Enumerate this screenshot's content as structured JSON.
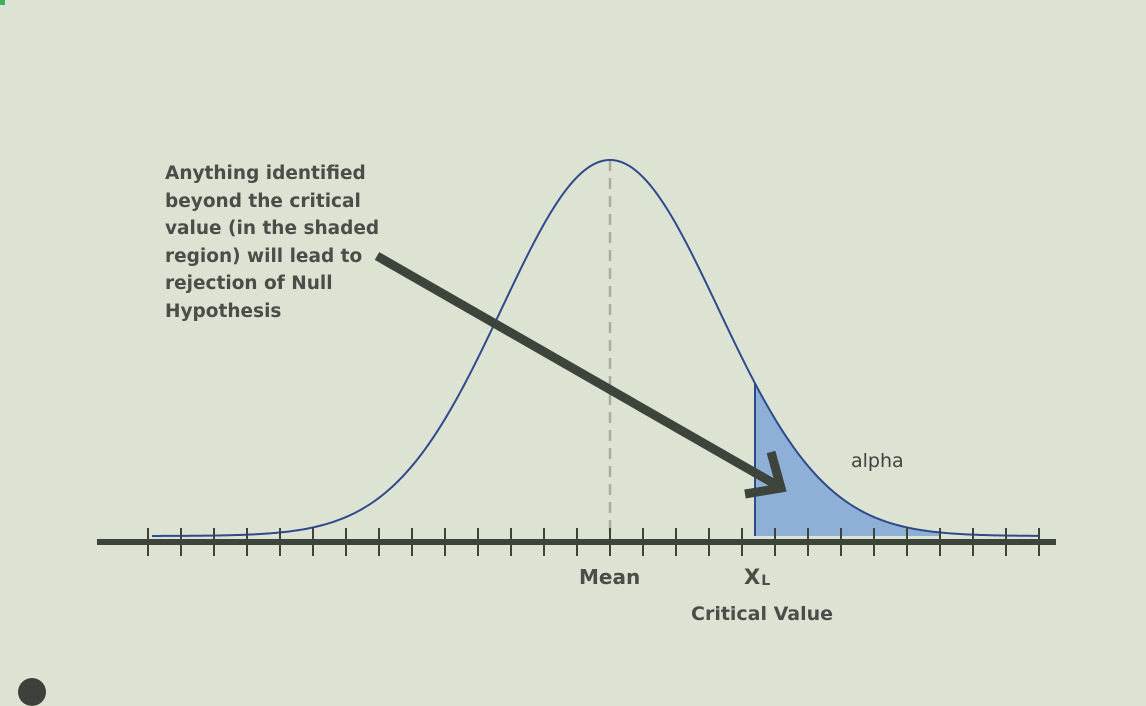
{
  "annotation": {
    "text": "Anything identified\nbeyond the critical\nvalue (in the shaded\nregion) will lead to\nrejection of Null\nHypothesis"
  },
  "labels": {
    "alpha": "alpha",
    "mean": "Mean",
    "critical_symbol": "X",
    "critical_subscript": "L",
    "critical_value": "Critical Value"
  },
  "colors": {
    "background": "#dde3d2",
    "curve": "#2f4a8c",
    "shaded_region": "#8fb0d6",
    "axis": "#3d443c",
    "arrow": "#3d443c",
    "mean_line": "#a9aca3",
    "text": "#4a4d48"
  },
  "diagram": {
    "distribution": "normal",
    "tail": "right",
    "shaded": "right tail beyond critical value",
    "tick_count": 28
  }
}
